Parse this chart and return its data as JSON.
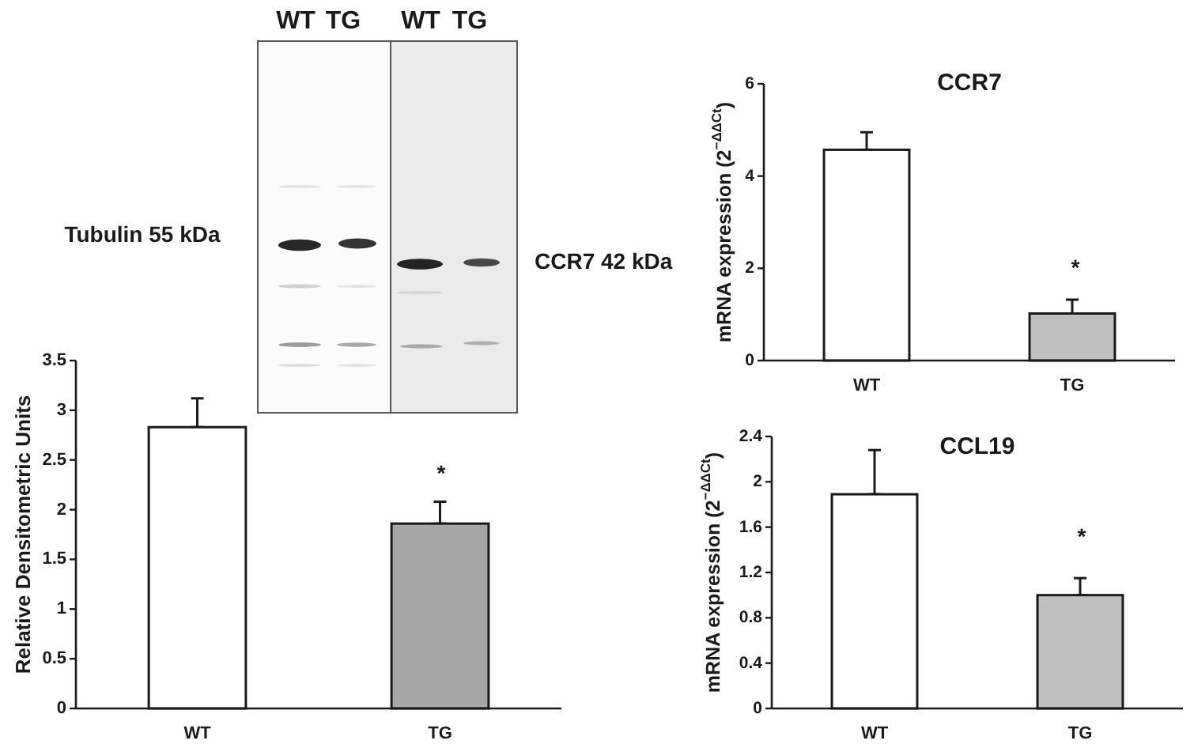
{
  "chart_data": [
    {
      "type": "other",
      "annotations": [
        "WT",
        "TG",
        "WT",
        "TG",
        "Tubulin 55 kDa",
        "CCR7 42 kDa"
      ]
    },
    {
      "type": "bar",
      "ylabel": "Relative Densitometric Units",
      "categories": [
        "WT",
        "TG"
      ],
      "values": [
        2.83,
        1.86
      ],
      "colors": [
        "#ffffff",
        "#a6a6a6"
      ],
      "errors": [
        [
          2.83,
          3.12
        ],
        [
          1.86,
          2.08
        ]
      ],
      "ylim": [
        0,
        3.5
      ],
      "yticks": [
        0,
        0.5,
        1,
        1.5,
        2,
        2.5,
        3,
        3.5
      ],
      "annotations": [
        "*"
      ]
    },
    {
      "type": "bar",
      "title": "CCR7",
      "ylabel": "mRNA expression (2$^{−ΔΔCt}$)",
      "categories": [
        "WT",
        "TG"
      ],
      "values": [
        4.57,
        1.02
      ],
      "colors": [
        "#ffffff",
        "#bfbfbf"
      ],
      "errors": [
        [
          4.57,
          4.95
        ],
        [
          1.02,
          1.32
        ]
      ],
      "ylim": [
        0,
        6
      ],
      "yticks": [
        0,
        2,
        4,
        6
      ],
      "annotations": [
        "*"
      ]
    },
    {
      "type": "bar",
      "title": "CCL19",
      "ylabel": "mRNA expression (2$^{−ΔΔCt}$)",
      "categories": [
        "WT",
        "TG"
      ],
      "values": [
        1.89,
        1.0
      ],
      "colors": [
        "#ffffff",
        "#bfbfbf"
      ],
      "errors": [
        [
          1.89,
          2.28
        ],
        [
          1.0,
          1.15
        ]
      ],
      "ylim": [
        0,
        2.4
      ],
      "yticks": [
        0,
        0.4,
        0.8,
        1.2,
        1.6,
        2,
        2.4
      ],
      "annotations": [
        "*"
      ]
    }
  ]
}
